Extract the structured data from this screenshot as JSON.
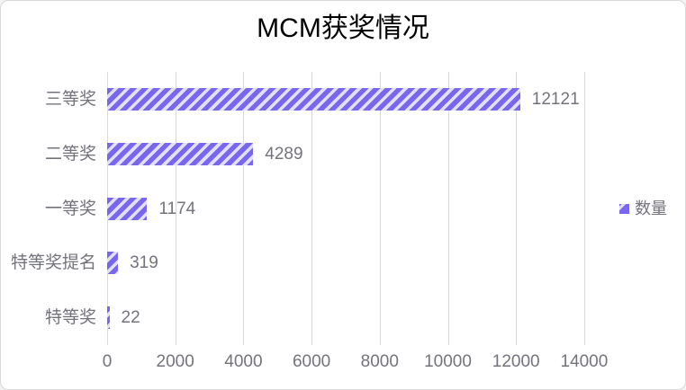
{
  "title": "MCM获奖情况",
  "legend": {
    "label": "数量"
  },
  "chart_data": {
    "type": "bar",
    "orientation": "horizontal",
    "title": "MCM获奖情况",
    "categories": [
      "三等奖",
      "二等奖",
      "一等奖",
      "特等奖提名",
      "特等奖"
    ],
    "series": [
      {
        "name": "数量",
        "values": [
          12121,
          4289,
          1174,
          319,
          22
        ]
      }
    ],
    "data_labels": [
      "12121",
      "4289",
      "1174",
      "319",
      "22"
    ],
    "x_ticks": [
      0,
      2000,
      4000,
      6000,
      8000,
      10000,
      12000,
      14000
    ],
    "x_tick_labels": [
      "0",
      "2000",
      "4000",
      "6000",
      "8000",
      "10000",
      "12000",
      "14000"
    ],
    "xlim": [
      0,
      14000
    ],
    "xlabel": "",
    "ylabel": "",
    "grid": true,
    "legend_position": "right",
    "bar_pattern": "diagonal-stripes"
  },
  "colors": {
    "bar_purple": "#7866ef",
    "bar_stripe": "#e2dff6",
    "gridline": "#d9d9d9",
    "axis_text": "#73737b",
    "title_text": "#000000",
    "chart_border": "#d8d8d8",
    "background": "#ffffff"
  }
}
